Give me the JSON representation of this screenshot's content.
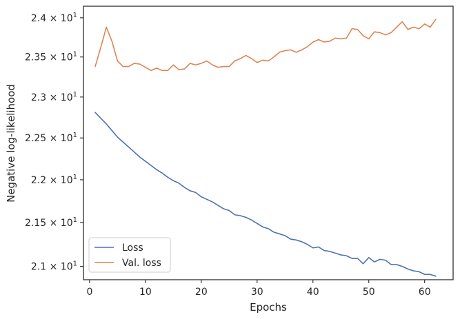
{
  "chart_data": {
    "type": "line",
    "title": "",
    "xlabel": "Epochs",
    "ylabel": "Negative log-likelihood",
    "xlim": [
      -1.1,
      65.1
    ],
    "ylim": [
      20.85,
      24.15
    ],
    "x_ticks": [
      0,
      10,
      20,
      30,
      40,
      50,
      60
    ],
    "y_ticks": [
      {
        "value": 21.0,
        "label": "2.1 × 10^1"
      },
      {
        "value": 21.5,
        "label": "2.15 × 10^1"
      },
      {
        "value": 22.0,
        "label": "2.2 × 10^1"
      },
      {
        "value": 22.5,
        "label": "2.25 × 10^1"
      },
      {
        "value": 23.0,
        "label": "2.3 × 10^1"
      },
      {
        "value": 23.5,
        "label": "2.35 × 10^1"
      },
      {
        "value": 24.0,
        "label": "2.4 × 10^1"
      }
    ],
    "y_scale": "log",
    "grid": false,
    "legend_position": "lower-left",
    "x": [
      1,
      2,
      3,
      4,
      5,
      6,
      7,
      8,
      9,
      10,
      11,
      12,
      13,
      14,
      15,
      16,
      17,
      18,
      19,
      20,
      21,
      22,
      23,
      24,
      25,
      26,
      27,
      28,
      29,
      30,
      31,
      32,
      33,
      34,
      35,
      36,
      37,
      38,
      39,
      40,
      41,
      42,
      43,
      44,
      45,
      46,
      47,
      48,
      49,
      50,
      51,
      52,
      53,
      54,
      55,
      56,
      57,
      58,
      59,
      60,
      61,
      62
    ],
    "series": [
      {
        "name": "Loss",
        "color": "#4c72b0",
        "values": [
          22.81,
          22.74,
          22.67,
          22.59,
          22.51,
          22.45,
          22.39,
          22.33,
          22.27,
          22.22,
          22.17,
          22.12,
          22.08,
          22.03,
          21.99,
          21.96,
          21.91,
          21.87,
          21.85,
          21.8,
          21.77,
          21.74,
          21.7,
          21.66,
          21.64,
          21.59,
          21.58,
          21.56,
          21.53,
          21.49,
          21.45,
          21.43,
          21.39,
          21.37,
          21.35,
          21.31,
          21.3,
          21.28,
          21.25,
          21.21,
          21.22,
          21.18,
          21.17,
          21.15,
          21.13,
          21.12,
          21.09,
          21.09,
          21.03,
          21.1,
          21.05,
          21.08,
          21.07,
          21.02,
          21.02,
          21.0,
          20.97,
          20.95,
          20.94,
          20.91,
          20.91,
          20.89
        ]
      },
      {
        "name": "Val. loss",
        "color": "#dd8452",
        "values": [
          23.38,
          23.62,
          23.88,
          23.7,
          23.45,
          23.38,
          23.38,
          23.42,
          23.41,
          23.37,
          23.33,
          23.36,
          23.33,
          23.33,
          23.4,
          23.34,
          23.35,
          23.42,
          23.4,
          23.42,
          23.45,
          23.4,
          23.37,
          23.38,
          23.38,
          23.45,
          23.48,
          23.52,
          23.48,
          23.43,
          23.46,
          23.45,
          23.5,
          23.56,
          23.58,
          23.59,
          23.56,
          23.59,
          23.63,
          23.69,
          23.72,
          23.69,
          23.7,
          23.74,
          23.73,
          23.74,
          23.86,
          23.85,
          23.77,
          23.73,
          23.82,
          23.81,
          23.78,
          23.81,
          23.88,
          23.95,
          23.85,
          23.88,
          23.86,
          23.92,
          23.88,
          23.98
        ]
      }
    ]
  }
}
